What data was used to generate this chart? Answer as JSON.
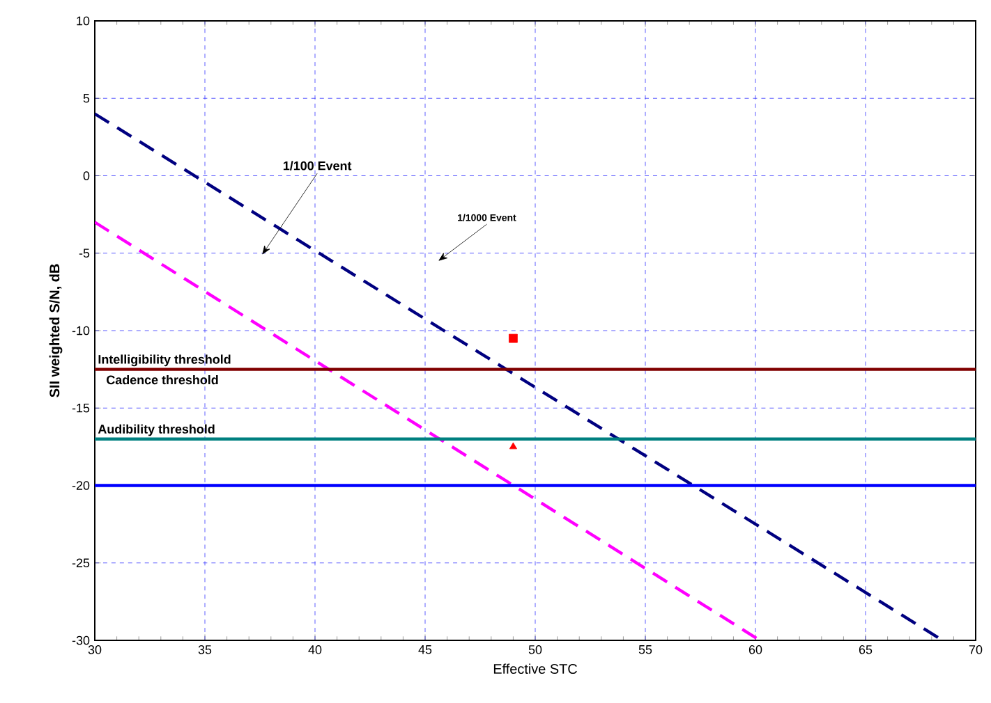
{
  "chart_data": {
    "type": "line",
    "xlabel": "Effective STC",
    "ylabel": "SII weighted S/N, dB",
    "x": [
      30,
      68.5
    ],
    "series": [
      {
        "color": "#000080",
        "values": [
          4,
          -30
        ],
        "line_style": "dashed",
        "marker": "none"
      },
      {
        "color": "#ff00ff",
        "x": [
          30,
          60.2
        ],
        "values": [
          -3,
          -30
        ],
        "line_style": "dashed",
        "marker": "none"
      },
      {
        "type": "scatter",
        "color": "#ff0000",
        "x": [
          49
        ],
        "values": [
          -10.5
        ],
        "marker": "square"
      },
      {
        "type": "scatter",
        "color": "#ff0000",
        "x": [
          49
        ],
        "values": [
          -17.5
        ],
        "marker": "triangle"
      }
    ],
    "ref_lines": [
      {
        "axis": "y",
        "value": -12.5,
        "label": "Intelligibility threshold",
        "color": "#800000"
      },
      {
        "axis": "y",
        "value": -17,
        "label": "Audibility threshold",
        "color": "#008080"
      },
      {
        "axis": "y",
        "value": -20,
        "color": "#0000ff"
      }
    ],
    "annotations": [
      "1/100 Event",
      "1/1000 Event",
      "Cadence threshold"
    ],
    "xlim": [
      30,
      70
    ],
    "ylim": [
      -30,
      10
    ],
    "xticks": [
      30,
      35,
      40,
      45,
      50,
      55,
      60,
      65,
      70
    ],
    "yticks": [
      -30,
      -25,
      -20,
      -15,
      -10,
      -5,
      0,
      5,
      10
    ],
    "grid": true
  }
}
